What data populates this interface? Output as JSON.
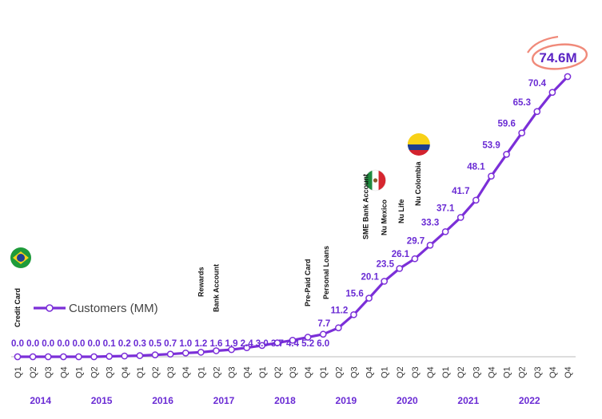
{
  "chart_data": {
    "type": "line",
    "series": [
      {
        "name": "Customers (MM)",
        "values": [
          0.0,
          0.0,
          0.0,
          0.0,
          0.0,
          0.0,
          0.1,
          0.2,
          0.3,
          0.5,
          0.7,
          1.0,
          1.2,
          1.6,
          1.9,
          2.4,
          3.0,
          3.7,
          4.4,
          5.2,
          6.0,
          7.7,
          11.2,
          15.6,
          20.1,
          23.5,
          26.1,
          29.7,
          33.3,
          37.1,
          41.7,
          48.1,
          53.9,
          59.6,
          65.3,
          70.4,
          74.6
        ],
        "labels": [
          "0.0",
          "0.0",
          "0.0",
          "0.0",
          "0.0",
          "0.0",
          "0.1",
          "0.2",
          "0.3",
          "0.5",
          "0.7",
          "1.0",
          "1.2",
          "1.6",
          "1.9",
          "2.4",
          "3.0",
          "3.7",
          "4.4",
          "5.2",
          "6.0",
          "7.7",
          "11.2",
          "15.6",
          "20.1",
          "23.5",
          "26.1",
          "29.7",
          "33.3",
          "37.1",
          "41.7",
          "48.1",
          "53.9",
          "59.6",
          "65.3",
          "70.4",
          "74.6M"
        ]
      }
    ],
    "categories": [
      "Q1",
      "Q2",
      "Q3",
      "Q4",
      "Q1",
      "Q2",
      "Q3",
      "Q4",
      "Q1",
      "Q2",
      "Q3",
      "Q4",
      "Q1",
      "Q2",
      "Q3",
      "Q4",
      "Q1",
      "Q2",
      "Q3",
      "Q4",
      "Q1",
      "Q2",
      "Q3",
      "Q4",
      "Q1",
      "Q2",
      "Q3",
      "Q4",
      "Q1",
      "Q2",
      "Q3",
      "Q4",
      "Q1",
      "Q2",
      "Q3",
      "Q4",
      "Q4"
    ],
    "years": [
      {
        "label": "2014",
        "quarters": [
          0,
          3
        ]
      },
      {
        "label": "2015",
        "quarters": [
          4,
          7
        ]
      },
      {
        "label": "2016",
        "quarters": [
          8,
          11
        ]
      },
      {
        "label": "2017",
        "quarters": [
          12,
          15
        ]
      },
      {
        "label": "2018",
        "quarters": [
          16,
          19
        ]
      },
      {
        "label": "2019",
        "quarters": [
          20,
          23
        ]
      },
      {
        "label": "2020",
        "quarters": [
          24,
          27
        ]
      },
      {
        "label": "2021",
        "quarters": [
          28,
          31
        ]
      },
      {
        "label": "2022",
        "quarters": [
          32,
          35
        ]
      }
    ],
    "annotations": [
      {
        "text": "Credit Card",
        "at": 0
      },
      {
        "text": "Rewards",
        "at": 12
      },
      {
        "text": "Bank Account",
        "at": 13
      },
      {
        "text": "Pre-Paid Card",
        "at": 19
      },
      {
        "text": "Personal Loans",
        "at": 20
      },
      {
        "text": "SME Bank Account",
        "at": 23
      },
      {
        "text": "Nu Mexico",
        "at": 24
      },
      {
        "text": "Nu Life",
        "at": 25
      },
      {
        "text": "Nu Colombia",
        "at": 26
      }
    ],
    "flags": [
      {
        "name": "brazil-flag",
        "at": 0
      },
      {
        "name": "mexico-flag",
        "at": 23
      },
      {
        "name": "colombia-flag",
        "at": 26
      }
    ],
    "legend": {
      "label": "Customers (MM)",
      "position": "left"
    },
    "ylim": [
      0,
      80
    ],
    "grid": false,
    "colors": {
      "line": "#7b2fd8",
      "label": "#6a2bd4",
      "callout_ring": "#f08a7a",
      "axis": "#bbbbbb"
    }
  }
}
